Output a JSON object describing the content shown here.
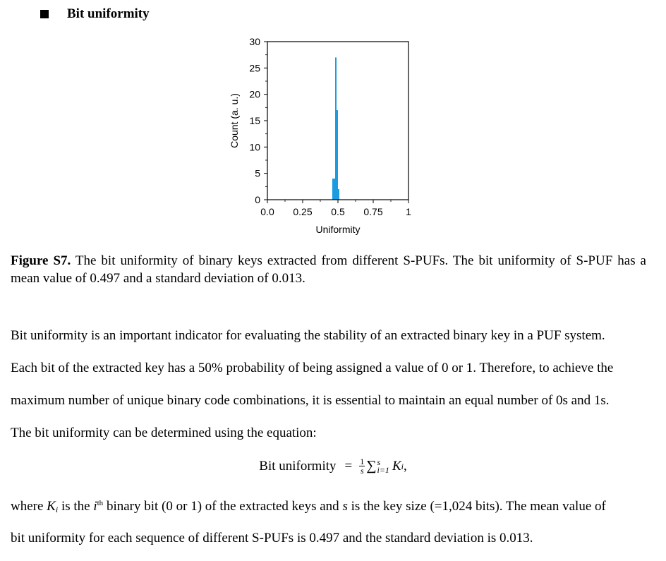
{
  "section": {
    "title": "Bit uniformity"
  },
  "chart_data": {
    "type": "bar",
    "xlabel": "Uniformity",
    "ylabel": "Count (a. u.)",
    "xlim": [
      0,
      1
    ],
    "ylim": [
      0,
      30
    ],
    "xtick_labels": [
      "0.0",
      "0.25",
      "0.5",
      "0.75",
      "1"
    ],
    "xtick_values": [
      0,
      0.25,
      0.5,
      0.75,
      1
    ],
    "ytick_values": [
      0,
      5,
      10,
      15,
      20,
      25,
      30
    ],
    "bin_width": 0.01,
    "bins": [
      0.465,
      0.475,
      0.485,
      0.495,
      0.505
    ],
    "values": [
      4,
      4,
      27,
      17,
      2
    ],
    "bar_color": "#1b9be0",
    "grid": false,
    "legend": "none"
  },
  "caption": {
    "label": "Figure S7.",
    "text": " The bit uniformity of binary keys extracted from different S-PUFs. The bit uniformity of S-PUF has a mean value of 0.497 and a standard deviation of 0.013."
  },
  "body": {
    "p1": "Bit uniformity is an important indicator for evaluating the stability of an extracted binary key in a PUF system.",
    "p2": "Each bit of the extracted key has a 50% probability of being assigned a value of 0 or 1. Therefore, to achieve the",
    "p3": "maximum number of unique binary code combinations, it is essential to maintain an equal number of 0s and 1s.",
    "p4": "The bit uniformity can be determined using the equation:",
    "p5_a": "where ",
    "p5_K": "K",
    "p5_i": "i",
    "p5_b": " is the ",
    "p5_i2": "i",
    "p5_th": "th",
    "p5_c": " binary bit (0 or 1) of the extracted keys and ",
    "p5_s": "s",
    "p5_d": " is the key size (=1,024 bits). The mean value of",
    "p6": "bit uniformity for each sequence of different S-PUFs is 0.497 and the standard deviation is 0.013."
  },
  "equation": {
    "lhs": "Bit uniformity",
    "eq": "=",
    "frac_num": "1",
    "frac_den": "s",
    "sum": "∑",
    "upper": "s",
    "lower": "i=1",
    "K": "K",
    "sub": "i",
    "trail": ","
  }
}
